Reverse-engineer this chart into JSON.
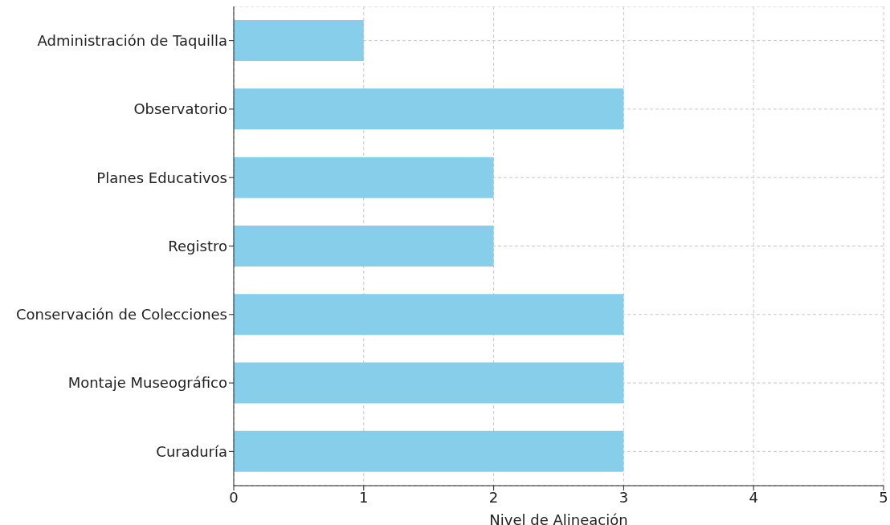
{
  "chart_data": {
    "type": "bar",
    "orientation": "horizontal",
    "xlabel": "Nivel de Alineación",
    "categories": [
      "Administración de Taquilla",
      "Observatorio",
      "Planes Educativos",
      "Registro",
      "Conservación de Colecciones",
      "Montaje Museográfico",
      "Curaduría"
    ],
    "values": [
      1,
      3,
      2,
      2,
      3,
      3,
      3
    ],
    "color": "#87ceeb",
    "xlim": [
      0,
      5
    ],
    "xticks": [
      0,
      1,
      2,
      3,
      4,
      5
    ],
    "grid": true
  }
}
